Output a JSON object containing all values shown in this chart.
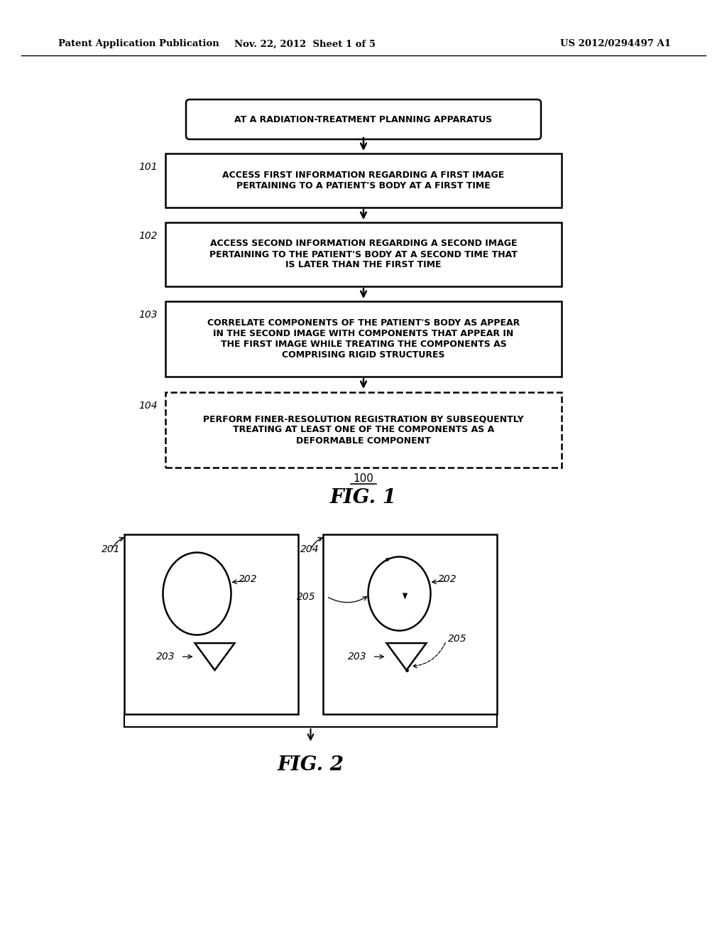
{
  "header_left": "Patent Application Publication",
  "header_mid": "Nov. 22, 2012  Sheet 1 of 5",
  "header_right": "US 2012/0294497 A1",
  "fig1_label": "100",
  "fig1_caption": "FIG. 1",
  "fig2_caption": "FIG. 2",
  "box0_text": "AT A RADIATION-TREATMENT PLANNING APPARATUS",
  "box1_text": "ACCESS FIRST INFORMATION REGARDING A FIRST IMAGE\nPERTAINING TO A PATIENT'S BODY AT A FIRST TIME",
  "box2_text": "ACCESS SECOND INFORMATION REGARDING A SECOND IMAGE\nPERTAINING TO THE PATIENT'S BODY AT A SECOND TIME THAT\nIS LATER THAN THE FIRST TIME",
  "box3_text": "CORRELATE COMPONENTS OF THE PATIENT'S BODY AS APPEAR\nIN THE SECOND IMAGE WITH COMPONENTS THAT APPEAR IN\nTHE FIRST IMAGE WHILE TREATING THE COMPONENTS AS\nCOMPRISING RIGID STRUCTURES",
  "box4_text": "PERFORM FINER-RESOLUTION REGISTRATION BY SUBSEQUENTLY\nTREATING AT LEAST ONE OF THE COMPONENTS AS A\nDEFORMABLE COMPONENT",
  "label_101": "101",
  "label_102": "102",
  "label_103": "103",
  "label_104": "104",
  "label_201": "201",
  "label_202a": "202",
  "label_202b": "202",
  "label_203a": "203",
  "label_203b": "203",
  "label_204": "204",
  "label_205a": "205",
  "label_205b": "205",
  "bg_color": "#ffffff",
  "text_color": "#000000",
  "box_edge_color": "#000000",
  "line_color": "#000000"
}
